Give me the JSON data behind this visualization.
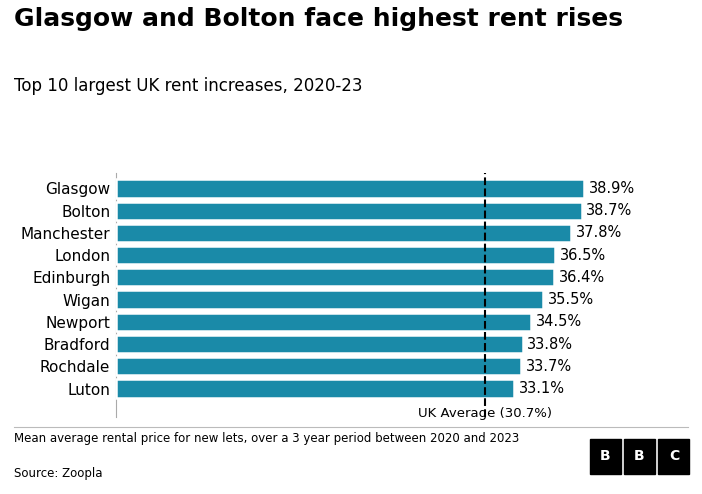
{
  "title": "Glasgow and Bolton face highest rent rises",
  "subtitle": "Top 10 largest UK rent increases, 2020-23",
  "footnote": "Mean average rental price for new lets, over a 3 year period between 2020 and 2023",
  "source": "Source: Zoopla",
  "cities": [
    "Glasgow",
    "Bolton",
    "Manchester",
    "London",
    "Edinburgh",
    "Wigan",
    "Newport",
    "Bradford",
    "Rochdale",
    "Luton"
  ],
  "values": [
    38.9,
    38.7,
    37.8,
    36.5,
    36.4,
    35.5,
    34.5,
    33.8,
    33.7,
    33.1
  ],
  "labels": [
    "38.9%",
    "38.7%",
    "37.8%",
    "36.5%",
    "36.4%",
    "35.5%",
    "34.5%",
    "33.8%",
    "33.7%",
    "33.1%"
  ],
  "bar_color": "#1a8aa8",
  "background_color": "#ffffff",
  "uk_average": 30.7,
  "uk_average_label": "UK Average (30.7%)",
  "xlim": [
    0,
    42
  ],
  "title_fontsize": 18,
  "subtitle_fontsize": 12,
  "city_fontsize": 11,
  "label_fontsize": 10.5,
  "bar_height": 0.82
}
